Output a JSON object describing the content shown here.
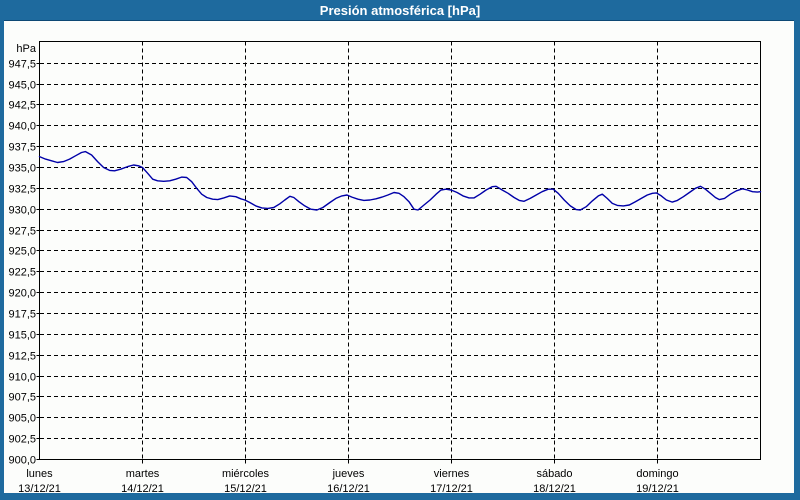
{
  "window": {
    "title": "Presión atmosférica [hPa]"
  },
  "colors": {
    "titlebar_bg": "#1E6A9E",
    "titlebar_text": "#FFFFFF",
    "window_border": "#1E6A9E",
    "window_border_dark": "#0D4874",
    "background": "#FCFDFB",
    "plot_line": "#0000A8",
    "grid": "#000000",
    "axis": "#000000",
    "text": "#000000"
  },
  "chart_data": {
    "type": "line",
    "title": "Presión atmosférica [hPa]",
    "unit_label": "hPa",
    "ylabel": "hPa",
    "xlabel": "",
    "ylim": [
      900,
      950.1
    ],
    "ytick_step": 2.5,
    "decimal_separator": ",",
    "grid": "dashed",
    "legend": "none",
    "ytick_values": [
      947.5,
      945.0,
      942.5,
      940.0,
      937.5,
      935.0,
      932.5,
      930.0,
      927.5,
      925.0,
      922.5,
      920.0,
      917.5,
      915.0,
      912.5,
      910.0,
      907.5,
      905.0,
      902.5,
      900.0
    ],
    "ytick_labels": [
      "947,5",
      "945,0",
      "942,5",
      "940,0",
      "937,5",
      "935,0",
      "932,5",
      "930,0",
      "927,5",
      "925,0",
      "922,5",
      "920,0",
      "917,5",
      "915,0",
      "912,5",
      "910,0",
      "907,5",
      "905,0",
      "902,5",
      "900,0"
    ],
    "x_days": [
      {
        "name": "lunes",
        "date": "13/12/21"
      },
      {
        "name": "martes",
        "date": "14/12/21"
      },
      {
        "name": "miércoles",
        "date": "15/12/21"
      },
      {
        "name": "jueves",
        "date": "16/12/21"
      },
      {
        "name": "viernes",
        "date": "17/12/21"
      },
      {
        "name": "sábado",
        "date": "18/12/21"
      },
      {
        "name": "domingo",
        "date": "19/12/21"
      }
    ],
    "series": [
      {
        "name": "Presión atmosférica",
        "color": "#0000A8",
        "x_unit": "days_from_start",
        "points": [
          [
            0.0,
            936.3
          ],
          [
            0.058,
            936.0
          ],
          [
            0.117,
            935.8
          ],
          [
            0.175,
            935.6
          ],
          [
            0.233,
            935.7
          ],
          [
            0.292,
            936.0
          ],
          [
            0.35,
            936.4
          ],
          [
            0.408,
            936.8
          ],
          [
            0.447,
            936.9
          ],
          [
            0.506,
            936.5
          ],
          [
            0.564,
            935.7
          ],
          [
            0.622,
            935.0
          ],
          [
            0.681,
            934.65
          ],
          [
            0.729,
            934.6
          ],
          [
            0.787,
            934.8
          ],
          [
            0.856,
            935.1
          ],
          [
            0.914,
            935.3
          ],
          [
            0.962,
            935.2
          ],
          [
            1.0,
            935.0
          ],
          [
            1.05,
            934.3
          ],
          [
            1.099,
            933.6
          ],
          [
            1.147,
            933.4
          ],
          [
            1.206,
            933.35
          ],
          [
            1.264,
            933.4
          ],
          [
            1.322,
            933.6
          ],
          [
            1.38,
            933.85
          ],
          [
            1.429,
            933.8
          ],
          [
            1.478,
            933.3
          ],
          [
            1.526,
            932.5
          ],
          [
            1.575,
            931.8
          ],
          [
            1.624,
            931.4
          ],
          [
            1.682,
            931.2
          ],
          [
            1.731,
            931.15
          ],
          [
            1.789,
            931.35
          ],
          [
            1.847,
            931.6
          ],
          [
            1.906,
            931.5
          ],
          [
            1.954,
            931.25
          ],
          [
            1.993,
            931.1
          ],
          [
            2.042,
            930.8
          ],
          [
            2.1,
            930.4
          ],
          [
            2.158,
            930.15
          ],
          [
            2.217,
            930.1
          ],
          [
            2.275,
            930.2
          ],
          [
            2.333,
            930.65
          ],
          [
            2.382,
            931.1
          ],
          [
            2.431,
            931.55
          ],
          [
            2.469,
            931.4
          ],
          [
            2.518,
            930.9
          ],
          [
            2.576,
            930.4
          ],
          [
            2.635,
            930.0
          ],
          [
            2.693,
            929.9
          ],
          [
            2.751,
            930.2
          ],
          [
            2.819,
            930.8
          ],
          [
            2.878,
            931.3
          ],
          [
            2.936,
            931.6
          ],
          [
            2.985,
            931.7
          ],
          [
            3.033,
            931.45
          ],
          [
            3.092,
            931.2
          ],
          [
            3.15,
            931.05
          ],
          [
            3.208,
            931.1
          ],
          [
            3.267,
            931.25
          ],
          [
            3.325,
            931.45
          ],
          [
            3.383,
            931.7
          ],
          [
            3.442,
            932.0
          ],
          [
            3.49,
            931.9
          ],
          [
            3.539,
            931.5
          ],
          [
            3.587,
            930.9
          ],
          [
            3.636,
            930.0
          ],
          [
            3.675,
            929.9
          ],
          [
            3.733,
            930.5
          ],
          [
            3.792,
            931.1
          ],
          [
            3.85,
            931.8
          ],
          [
            3.898,
            932.3
          ],
          [
            3.947,
            932.4
          ],
          [
            3.996,
            932.3
          ],
          [
            4.054,
            932.0
          ],
          [
            4.112,
            931.6
          ],
          [
            4.171,
            931.35
          ],
          [
            4.219,
            931.35
          ],
          [
            4.278,
            931.8
          ],
          [
            4.336,
            932.3
          ],
          [
            4.394,
            932.7
          ],
          [
            4.433,
            932.75
          ],
          [
            4.492,
            932.3
          ],
          [
            4.55,
            931.9
          ],
          [
            4.608,
            931.4
          ],
          [
            4.657,
            931.05
          ],
          [
            4.705,
            930.95
          ],
          [
            4.764,
            931.3
          ],
          [
            4.822,
            931.7
          ],
          [
            4.88,
            932.1
          ],
          [
            4.939,
            932.4
          ],
          [
            4.987,
            932.4
          ],
          [
            5.036,
            931.9
          ],
          [
            5.094,
            931.1
          ],
          [
            5.153,
            930.4
          ],
          [
            5.211,
            929.95
          ],
          [
            5.25,
            929.9
          ],
          [
            5.308,
            930.3
          ],
          [
            5.367,
            931.0
          ],
          [
            5.425,
            931.6
          ],
          [
            5.464,
            931.8
          ],
          [
            5.512,
            931.3
          ],
          [
            5.561,
            930.7
          ],
          [
            5.61,
            930.45
          ],
          [
            5.668,
            930.4
          ],
          [
            5.726,
            930.5
          ],
          [
            5.785,
            930.9
          ],
          [
            5.843,
            931.3
          ],
          [
            5.901,
            931.7
          ],
          [
            5.95,
            931.9
          ],
          [
            5.989,
            931.95
          ],
          [
            6.037,
            931.6
          ],
          [
            6.086,
            931.1
          ],
          [
            6.144,
            930.85
          ],
          [
            6.193,
            931.05
          ],
          [
            6.251,
            931.5
          ],
          [
            6.31,
            932.0
          ],
          [
            6.368,
            932.5
          ],
          [
            6.417,
            932.75
          ],
          [
            6.465,
            932.4
          ],
          [
            6.514,
            931.9
          ],
          [
            6.562,
            931.4
          ],
          [
            6.601,
            931.15
          ],
          [
            6.65,
            931.3
          ],
          [
            6.708,
            931.8
          ],
          [
            6.766,
            932.2
          ],
          [
            6.825,
            932.45
          ],
          [
            6.873,
            932.3
          ],
          [
            6.922,
            932.1
          ],
          [
            6.97,
            932.05
          ],
          [
            7.0,
            932.1
          ]
        ]
      }
    ]
  }
}
